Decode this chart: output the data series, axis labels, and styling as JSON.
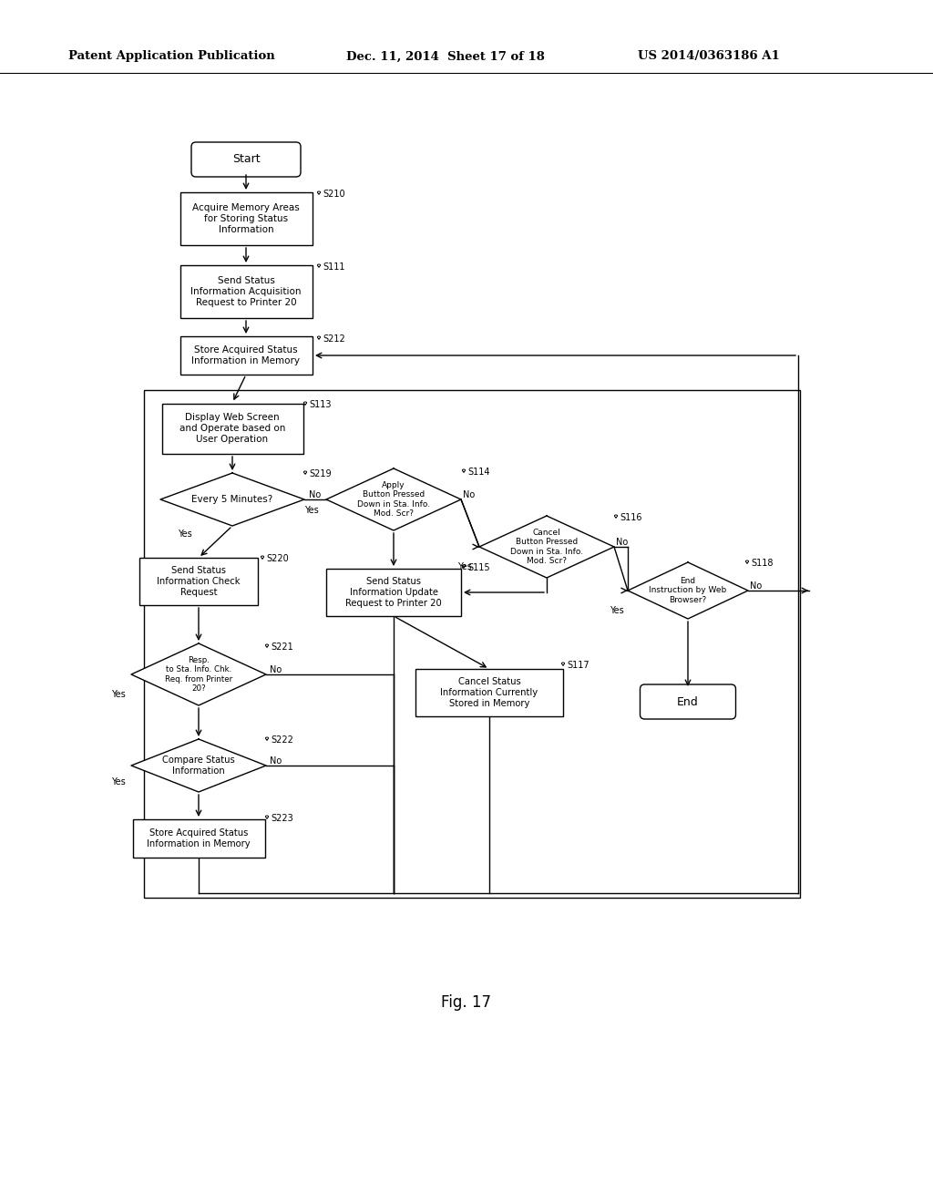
{
  "title_left": "Patent Application Publication",
  "title_center": "Dec. 11, 2014  Sheet 17 of 18",
  "title_right": "US 2014/0363186 A1",
  "fig_label": "Fig. 17",
  "background": "#ffffff"
}
